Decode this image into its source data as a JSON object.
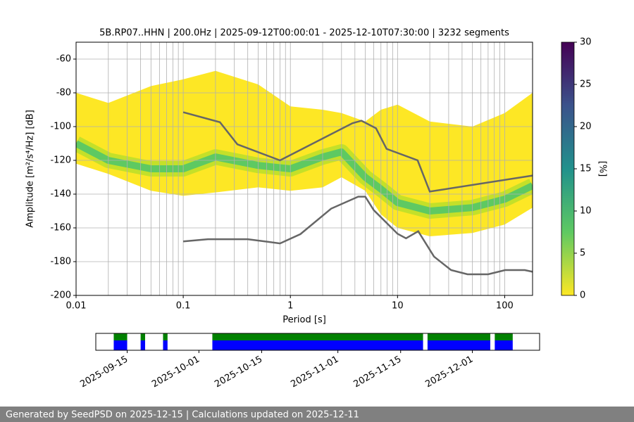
{
  "chart_data": [
    {
      "type": "ppsd",
      "title": "5B.RP07..HHN | 200.0Hz | 2025-09-12T00:00:01 - 2025-12-10T07:30:00 | 3232 segments",
      "xlabel": "Period [s]",
      "ylabel": "Amplitude [m²/s⁴/Hz] [dB]",
      "log_x": true,
      "grid": true,
      "xlim": [
        0.01,
        182
      ],
      "ylim": [
        -200,
        -50
      ],
      "xticks": [
        0.01,
        0.1,
        1,
        10,
        100
      ],
      "xminorticks": [
        0.02,
        0.03,
        0.04,
        0.05,
        0.06,
        0.07,
        0.08,
        0.09,
        0.2,
        0.3,
        0.4,
        0.5,
        0.6,
        0.7,
        0.8,
        0.9,
        2,
        3,
        4,
        5,
        6,
        7,
        8,
        9,
        20,
        30,
        40,
        50,
        60,
        70,
        80,
        90
      ],
      "yticks": [
        -200,
        -180,
        -160,
        -140,
        -120,
        -100,
        -80,
        -60
      ],
      "density": {
        "color": "#fde725",
        "mode_color": "#5ec962",
        "x": [
          0.01,
          0.02,
          0.05,
          0.1,
          0.2,
          0.5,
          1,
          2,
          3,
          5,
          7,
          10,
          20,
          50,
          100,
          182
        ],
        "low": [
          -122,
          -128,
          -138,
          -141,
          -139,
          -136,
          -138,
          -136,
          -130,
          -138,
          -152,
          -160,
          -165,
          -163,
          -158,
          -148
        ],
        "high": [
          -80,
          -86,
          -76,
          -72,
          -67,
          -75,
          -88,
          -90,
          -92,
          -97,
          -90,
          -87,
          -97,
          -100,
          -92,
          -80
        ],
        "mode": [
          -110,
          -120,
          -125,
          -125,
          -118,
          -123,
          -125,
          -118,
          -115,
          -130,
          -137,
          -145,
          -150,
          -148,
          -143,
          -135
        ]
      },
      "colorbar": {
        "lim": [
          0,
          30
        ],
        "ticks": [
          0,
          5,
          10,
          15,
          20,
          25,
          30
        ],
        "label": "[%]"
      },
      "series": [
        {
          "color": "#666666",
          "x": [
            0.1,
            0.22,
            0.32,
            0.8,
            3.8,
            4.6,
            6.3,
            7.9,
            15.4,
            20,
            182
          ],
          "values": [
            -91.5,
            -97.4,
            -110.5,
            -120,
            -98,
            -96.5,
            -101,
            -113.2,
            -120,
            -138.5,
            -129
          ]
        },
        {
          "color": "#666666",
          "x": [
            0.1,
            0.17,
            0.4,
            0.8,
            1.24,
            2.4,
            4.3,
            5,
            6,
            10,
            12,
            15.6,
            21.9,
            31.6,
            45,
            70,
            101,
            154,
            182
          ],
          "values": [
            -168,
            -166.7,
            -166.7,
            -169.2,
            -163.7,
            -148.6,
            -141.5,
            -141.5,
            -149.5,
            -163.5,
            -166.2,
            -162,
            -177,
            -185,
            -187.5,
            -187.5,
            -185,
            -185,
            -186
          ]
        }
      ]
    },
    {
      "type": "timeline",
      "xlim": [
        "2025-09-08",
        "2025-12-16"
      ],
      "xticks": [
        "2025-09-15",
        "2025-10-01",
        "2025-10-15",
        "2025-11-01",
        "2025-11-15",
        "2025-12-01"
      ],
      "colors": [
        "#008000",
        "#0000ff"
      ],
      "segments": {
        "start": [
          "2025-09-12",
          "2025-09-18",
          "2025-09-23",
          "2025-10-04",
          "2025-11-21",
          "2025-12-06"
        ],
        "end": [
          "2025-09-15",
          "2025-09-19",
          "2025-09-24",
          "2025-11-20",
          "2025-12-05",
          "2025-12-10"
        ]
      }
    }
  ],
  "footer": "Generated by SeedPSD on 2025-12-15 | Calculations updated on 2025-12-11"
}
